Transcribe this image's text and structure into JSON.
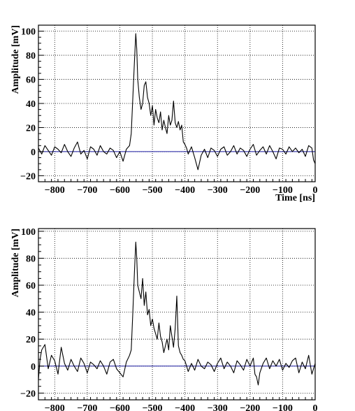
{
  "chart_data": [
    {
      "type": "line",
      "xlabel": "Time [ns]",
      "ylabel": "Amplitude [mV]",
      "xlim": [
        -850,
        0
      ],
      "ylim": [
        -25,
        105
      ],
      "x_ticks": [
        -800,
        -700,
        -600,
        -500,
        -400,
        -300,
        -200,
        -100,
        0
      ],
      "x_tick_labels": [
        "−800",
        "−700",
        "−600",
        "−500",
        "−400",
        "−300",
        "−200",
        "−100",
        "0"
      ],
      "y_ticks": [
        -20,
        0,
        20,
        40,
        60,
        80,
        100
      ],
      "y_tick_labels": [
        "−20",
        "0",
        "20",
        "40",
        "60",
        "80",
        "100"
      ],
      "grid": true,
      "baseline": {
        "y": 0,
        "color": "#1a1aa0"
      },
      "series_color": "#000000",
      "x": [
        -850,
        -840,
        -830,
        -820,
        -810,
        -800,
        -790,
        -780,
        -770,
        -760,
        -750,
        -740,
        -730,
        -720,
        -710,
        -700,
        -690,
        -680,
        -670,
        -660,
        -650,
        -640,
        -630,
        -620,
        -610,
        -600,
        -590,
        -580,
        -570,
        -565,
        -560,
        -555,
        -551,
        -548,
        -545,
        -540,
        -535,
        -530,
        -525,
        -520,
        -515,
        -510,
        -505,
        -500,
        -495,
        -490,
        -485,
        -480,
        -475,
        -470,
        -465,
        -460,
        -455,
        -450,
        -445,
        -440,
        -435,
        -430,
        -425,
        -420,
        -415,
        -410,
        -405,
        -400,
        -395,
        -390,
        -380,
        -370,
        -360,
        -350,
        -340,
        -330,
        -320,
        -310,
        -300,
        -290,
        -280,
        -270,
        -260,
        -250,
        -240,
        -230,
        -220,
        -210,
        -200,
        -190,
        -180,
        -170,
        -160,
        -150,
        -140,
        -130,
        -120,
        -110,
        -100,
        -90,
        -80,
        -70,
        -60,
        -50,
        -40,
        -30,
        -20,
        -10,
        -5,
        0
      ],
      "y": [
        3,
        -2,
        5,
        1,
        -3,
        4,
        2,
        -1,
        6,
        0,
        -4,
        3,
        8,
        -2,
        1,
        -6,
        4,
        2,
        -3,
        5,
        0,
        -2,
        3,
        1,
        -5,
        0,
        -8,
        2,
        5,
        15,
        45,
        75,
        98,
        85,
        60,
        45,
        35,
        40,
        55,
        58,
        45,
        40,
        30,
        38,
        22,
        35,
        28,
        24,
        33,
        18,
        26,
        20,
        15,
        30,
        22,
        26,
        42,
        24,
        20,
        25,
        18,
        22,
        8,
        6,
        3,
        -2,
        4,
        -5,
        -15,
        -3,
        2,
        -5,
        3,
        1,
        -4,
        2,
        4,
        -3,
        0,
        5,
        -2,
        3,
        1,
        -4,
        2,
        6,
        -3,
        1,
        4,
        -2,
        5,
        0,
        -6,
        3,
        2,
        -2,
        4,
        0,
        3,
        -1,
        2,
        -4,
        5,
        3,
        -7,
        -10
      ]
    },
    {
      "type": "line",
      "xlabel": "Time [ns]",
      "ylabel": "Amplitude [mV]",
      "xlim": [
        -850,
        0
      ],
      "ylim": [
        -25,
        102
      ],
      "x_ticks": [
        -800,
        -700,
        -600,
        -500,
        -400,
        -300,
        -200,
        -100,
        0
      ],
      "x_tick_labels": [
        "−800",
        "−700",
        "−600",
        "−500",
        "−400",
        "−300",
        "−200",
        "−100",
        "0"
      ],
      "y_ticks": [
        -20,
        0,
        20,
        40,
        60,
        80,
        100
      ],
      "y_tick_labels": [
        "−20",
        "0",
        "20",
        "40",
        "60",
        "80",
        "100"
      ],
      "grid": true,
      "baseline": {
        "y": 0,
        "color": "#1a1aa0"
      },
      "series_color": "#000000",
      "x": [
        -850,
        -845,
        -840,
        -830,
        -820,
        -810,
        -800,
        -790,
        -780,
        -770,
        -760,
        -750,
        -740,
        -730,
        -720,
        -710,
        -700,
        -690,
        -680,
        -670,
        -660,
        -650,
        -640,
        -630,
        -620,
        -610,
        -600,
        -590,
        -580,
        -570,
        -565,
        -560,
        -555,
        -551,
        -548,
        -545,
        -540,
        -535,
        -530,
        -525,
        -520,
        -515,
        -510,
        -505,
        -500,
        -495,
        -490,
        -485,
        -480,
        -475,
        -470,
        -465,
        -460,
        -455,
        -450,
        -445,
        -440,
        -435,
        -430,
        -425,
        -420,
        -415,
        -410,
        -405,
        -400,
        -395,
        -390,
        -380,
        -370,
        -360,
        -350,
        -340,
        -330,
        -320,
        -310,
        -300,
        -290,
        -280,
        -270,
        -260,
        -250,
        -240,
        -230,
        -220,
        -210,
        -200,
        -190,
        -185,
        -180,
        -175,
        -170,
        -160,
        -150,
        -140,
        -130,
        -120,
        -110,
        -100,
        -90,
        -80,
        -70,
        -60,
        -50,
        -40,
        -30,
        -20,
        -10,
        0
      ],
      "y": [
        -10,
        5,
        12,
        16,
        -2,
        8,
        4,
        -6,
        14,
        2,
        -3,
        5,
        0,
        -4,
        6,
        2,
        -5,
        3,
        1,
        -2,
        4,
        0,
        -6,
        3,
        5,
        -2,
        -5,
        -8,
        3,
        8,
        12,
        40,
        70,
        92,
        80,
        60,
        55,
        50,
        65,
        45,
        55,
        38,
        42,
        30,
        35,
        28,
        24,
        20,
        32,
        22,
        18,
        10,
        15,
        20,
        12,
        30,
        22,
        14,
        28,
        52,
        15,
        10,
        8,
        5,
        4,
        0,
        -4,
        2,
        -3,
        5,
        0,
        -2,
        3,
        1,
        -4,
        2,
        6,
        -2,
        3,
        0,
        -5,
        4,
        1,
        -3,
        5,
        0,
        6,
        -6,
        -8,
        -14,
        -5,
        2,
        6,
        -2,
        4,
        0,
        5,
        -3,
        2,
        -1,
        4,
        6,
        -5,
        3,
        -2,
        8,
        -6,
        2
      ]
    }
  ]
}
